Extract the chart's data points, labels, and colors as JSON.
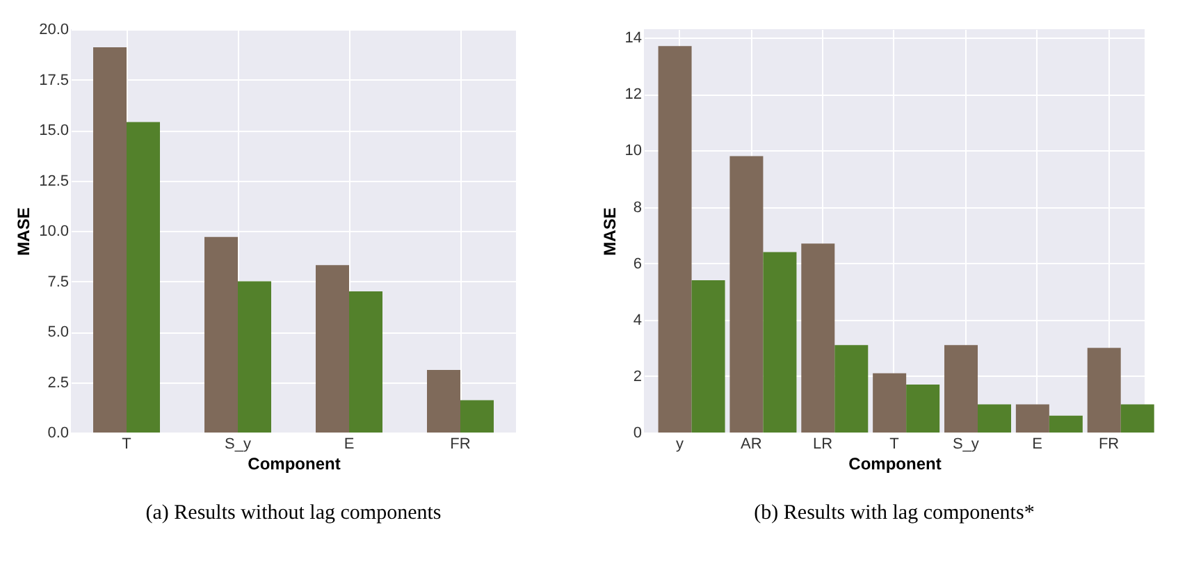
{
  "chart_data": [
    {
      "type": "bar",
      "title": "(a) Results without lag components",
      "xlabel": "Component",
      "ylabel": "MASE",
      "categories": [
        "T",
        "S_y",
        "E",
        "FR"
      ],
      "ylim": [
        0,
        20
      ],
      "yticks": [
        {
          "value": 0,
          "label": "0.0"
        },
        {
          "value": 2.5,
          "label": "2.5"
        },
        {
          "value": 5,
          "label": "5.0"
        },
        {
          "value": 7.5,
          "label": "7.5"
        },
        {
          "value": 10,
          "label": "10.0"
        },
        {
          "value": 12.5,
          "label": "12.5"
        },
        {
          "value": 15,
          "label": "15.0"
        },
        {
          "value": 17.5,
          "label": "17.5"
        },
        {
          "value": 20,
          "label": "20.0"
        }
      ],
      "grid": true,
      "series": [
        {
          "color": "#7f6a5a",
          "values": [
            19.1,
            9.7,
            8.3,
            3.1
          ]
        },
        {
          "color": "#53812b",
          "values": [
            15.4,
            7.5,
            7.0,
            1.6
          ]
        }
      ]
    },
    {
      "type": "bar",
      "title": "(b) Results with lag components*",
      "xlabel": "Component",
      "ylabel": "MASE",
      "categories": [
        "y",
        "AR",
        "LR",
        "T",
        "S_y",
        "E",
        "FR"
      ],
      "ylim": [
        0,
        14.3
      ],
      "yticks": [
        0,
        2,
        4,
        6,
        8,
        10,
        12,
        14
      ],
      "grid": true,
      "series": [
        {
          "color": "#7f6a5a",
          "values": [
            13.7,
            9.8,
            6.7,
            2.1,
            3.1,
            1.0,
            3.0
          ]
        },
        {
          "color": "#53812b",
          "values": [
            5.4,
            6.4,
            3.1,
            1.7,
            1.0,
            0.6,
            1.0
          ]
        }
      ]
    }
  ]
}
